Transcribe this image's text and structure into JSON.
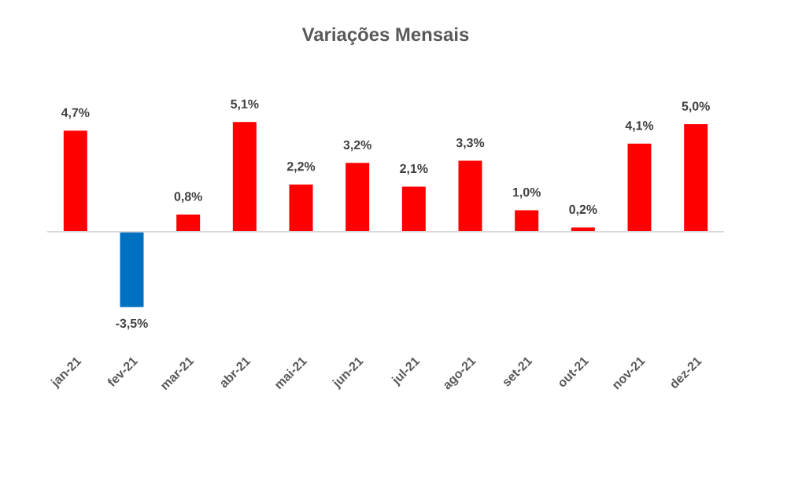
{
  "chart_data": {
    "type": "bar",
    "title": "Variações Mensais",
    "categories": [
      "jan-21",
      "fev-21",
      "mar-21",
      "abr-21",
      "mai-21",
      "jun-21",
      "jul-21",
      "ago-21",
      "set-21",
      "out-21",
      "nov-21",
      "dez-21"
    ],
    "values": [
      4.7,
      -3.5,
      0.8,
      5.1,
      2.2,
      3.2,
      2.1,
      3.3,
      1.0,
      0.2,
      4.1,
      5.0
    ],
    "colors": [
      "#ff0000",
      "#0070c0",
      "#ff0000",
      "#ff0000",
      "#ff0000",
      "#ff0000",
      "#ff0000",
      "#ff0000",
      "#ff0000",
      "#ff0000",
      "#ff0000",
      "#ff0000"
    ],
    "value_labels": [
      "4,7%",
      "-3,5%",
      "0,8%",
      "5,1%",
      "2,2%",
      "3,2%",
      "2,1%",
      "3,3%",
      "1,0%",
      "0,2%",
      "4,1%",
      "5,0%"
    ]
  }
}
